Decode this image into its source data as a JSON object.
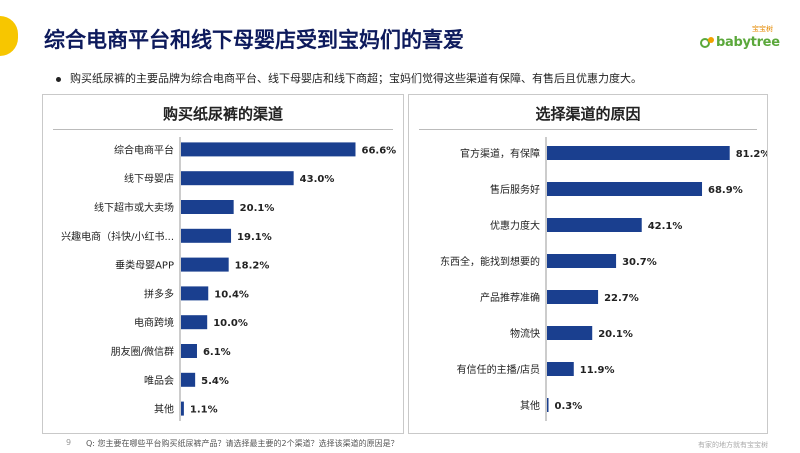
{
  "slide": {
    "title": "综合电商平台和线下母婴店受到宝妈们的喜爱",
    "bullet": "购买纸尿裤的主要品牌为综合电商平台、线下母婴店和线下商超；宝妈们觉得这些渠道有保障、有售后且优惠力度大。",
    "logo_text": "babytree",
    "logo_cn": "宝宝树",
    "page_number": "9",
    "question": "Q:  您主要在哪些平台购买纸尿裤产品？请选择最主要的2个渠道？选择该渠道的原因是？",
    "slogan": "有家的地方就有宝宝树",
    "accent_color": "#f7c600",
    "bar_color": "#1a3f8f"
  },
  "chart_data": [
    {
      "type": "bar",
      "orientation": "horizontal",
      "title": "购买纸尿裤的渠道",
      "categories": [
        "综合电商平台",
        "线下母婴店",
        "线下超市或大卖场",
        "兴趣电商（抖快/小红书...",
        "垂类母婴APP",
        "拼多多",
        "电商跨境",
        "朋友圈/微信群",
        "唯品会",
        "其他"
      ],
      "values": [
        66.6,
        43.0,
        20.1,
        19.1,
        18.2,
        10.4,
        10.0,
        6.1,
        5.4,
        1.1
      ],
      "value_labels": [
        "66.6%",
        "43.0%",
        "20.1%",
        "19.1%",
        "18.2%",
        "10.4%",
        "10.0%",
        "6.1%",
        "5.4%",
        "1.1%"
      ],
      "xlim": [
        0,
        100
      ],
      "grid": false
    },
    {
      "type": "bar",
      "orientation": "horizontal",
      "title": "选择渠道的原因",
      "categories": [
        "官方渠道，有保障",
        "售后服务好",
        "优惠力度大",
        "东西全，能找到想要的",
        "产品推荐准确",
        "物流快",
        "有信任的主播/店员",
        "其他"
      ],
      "values": [
        81.2,
        68.9,
        42.1,
        30.7,
        22.7,
        20.1,
        11.9,
        0.3
      ],
      "value_labels": [
        "81.2%",
        "68.9%",
        "42.1%",
        "30.7%",
        "22.7%",
        "20.1%",
        "11.9%",
        "0.3%"
      ],
      "xlim": [
        0,
        100
      ],
      "grid": false
    }
  ]
}
